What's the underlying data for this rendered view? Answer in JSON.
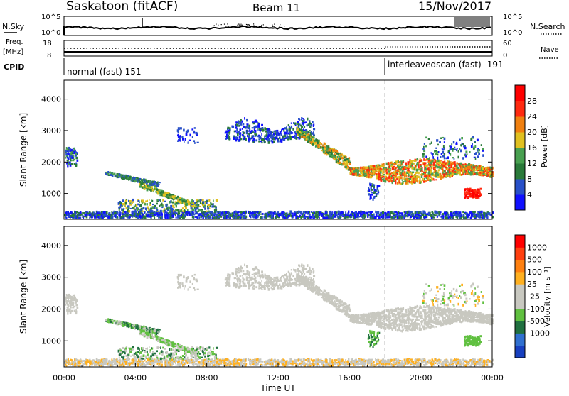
{
  "header": {
    "station": "Saskatoon (fitACF)",
    "beam": "Beam 11",
    "date": "15/Nov/2017"
  },
  "chart_data": [
    {
      "type": "line",
      "panel": "nsky-nsearch",
      "left_label": "N.Sky",
      "right_label": "N.Search",
      "left_ticks": [
        "10^5",
        "10^0"
      ],
      "right_ticks": [
        "10^5",
        "10^0"
      ]
    },
    {
      "type": "line",
      "panel": "freq-nave",
      "left_label": "Freq.",
      "left_unit": "[MHz]",
      "right_label": "Nave",
      "left_ticks": [
        "18",
        "8"
      ],
      "right_ticks": [
        "60",
        "0"
      ]
    },
    {
      "type": "table",
      "panel": "cpid",
      "label": "CPID",
      "segments": [
        {
          "start_hour": 0,
          "end_hour": 18,
          "text": "normal (fast) 151"
        },
        {
          "start_hour": 18,
          "end_hour": 24,
          "text": "interleavedscan (fast) -191"
        }
      ]
    },
    {
      "type": "heatmap",
      "panel": "power",
      "ylabel": "Slant Range [km]",
      "xlim": [
        0,
        24
      ],
      "ylim": [
        180,
        4600
      ],
      "yticks": [
        "1000",
        "2000",
        "3000",
        "4000"
      ],
      "colorbar": {
        "label": "Power [dB]",
        "range": [
          0,
          32
        ],
        "ticks": [
          "4",
          "8",
          "12",
          "16",
          "20",
          "24",
          "28"
        ],
        "colors": [
          "#1010ff",
          "#2850c8",
          "#2a7a3a",
          "#48a050",
          "#e0c020",
          "#f08010",
          "#ff2a10",
          "#ff0000"
        ]
      }
    },
    {
      "type": "heatmap",
      "panel": "velocity",
      "ylabel": "Slant Range [km]",
      "xlabel": "Time UT",
      "xlim": [
        0,
        24
      ],
      "ylim": [
        180,
        4600
      ],
      "yticks": [
        "1000",
        "2000",
        "3000",
        "4000"
      ],
      "xticks": [
        "00:00",
        "04:00",
        "08:00",
        "12:00",
        "16:00",
        "20:00",
        "00:00"
      ],
      "colorbar": {
        "label": "Velocity [m s⁻¹]",
        "ticks": [
          "1000",
          "500",
          "100",
          "25",
          "-25",
          "-100",
          "-500",
          "-1000"
        ],
        "colors": [
          "#1840c0",
          "#3070d0",
          "#207040",
          "#60c040",
          "#c8c8c0",
          "#c8c8c0",
          "#ffb020",
          "#ff8010",
          "#ff4010",
          "#ff0000"
        ]
      }
    }
  ]
}
